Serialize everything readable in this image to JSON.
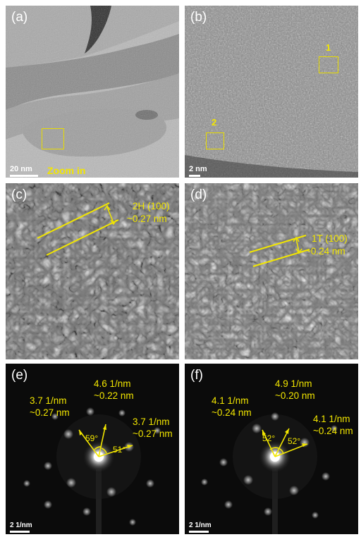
{
  "panels": {
    "a": {
      "label": "(a)",
      "scale": "20 nm",
      "note": "Zoom in"
    },
    "b": {
      "label": "(b)",
      "scale": "2 nm",
      "region1": "1",
      "region2": "2"
    },
    "c": {
      "label": "(c)",
      "line1": "2H (100)",
      "line2": "~0.27 nm"
    },
    "d": {
      "label": "(d)",
      "line1": "1T (100)",
      "line2": "~0.24 nm"
    },
    "e": {
      "label": "(e)",
      "scale": "2 1/nm",
      "spotA": "3.7 1/nm\n~0.27 nm",
      "spotB": "4.6 1/nm\n~0.22 nm",
      "spotC": "3.7 1/nm\n~0.27 nm",
      "angle1": "59°",
      "angle2": "51°"
    },
    "f": {
      "label": "(f)",
      "scale": "2 1/nm",
      "spotA": "4.1 1/nm\n~0.24 nm",
      "spotB": "4.9 1/nm\n~0.20 nm",
      "spotC": "4.1 1/nm\n~0.24 nm",
      "angle1": "52°",
      "angle2": "52°"
    }
  },
  "colors": {
    "annotation": "#f2e600",
    "text": "#ffffff"
  }
}
